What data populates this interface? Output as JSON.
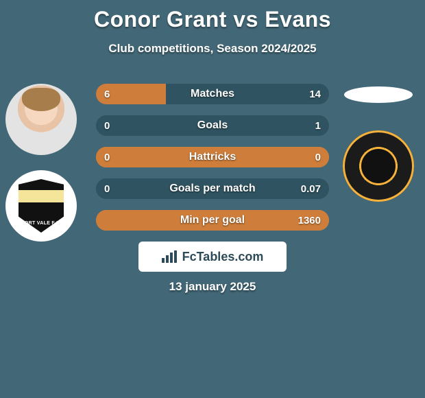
{
  "title": "Conor Grant vs Evans",
  "subtitle": "Club competitions, Season 2024/2025",
  "date": "13 january 2025",
  "brand": "FcTables.com",
  "colors": {
    "background": "#426776",
    "bar_left": "#ce7e3a",
    "bar_right": "#2f5360",
    "text": "#ffffff",
    "brand_bg": "#ffffff",
    "brand_fg": "#2c4a57"
  },
  "fonts": {
    "title_size": 32,
    "subtitle_size": 17,
    "bar_label_size": 16,
    "bar_value_size": 15,
    "date_size": 17,
    "brand_size": 18
  },
  "players": {
    "left": {
      "name": "Conor Grant",
      "team_badge": "port-vale-badge"
    },
    "right": {
      "name": "Evans",
      "team_badge": "newport-county-badge"
    }
  },
  "bars": [
    {
      "label": "Matches",
      "left": "6",
      "right": "14",
      "left_fill_css": "width:30%",
      "track_css": "background:#2f5360"
    },
    {
      "label": "Goals",
      "left": "0",
      "right": "1",
      "left_fill_css": "width:0%",
      "track_css": "background:#2f5360"
    },
    {
      "label": "Hattricks",
      "left": "0",
      "right": "0",
      "left_fill_css": "width:100%",
      "track_css": "background:#ce7e3a"
    },
    {
      "label": "Goals per match",
      "left": "0",
      "right": "0.07",
      "left_fill_css": "width:0%",
      "track_css": "background:#2f5360"
    },
    {
      "label": "Min per goal",
      "left": "",
      "right": "1360",
      "left_fill_css": "width:100%",
      "track_css": "background:#ce7e3a"
    }
  ]
}
